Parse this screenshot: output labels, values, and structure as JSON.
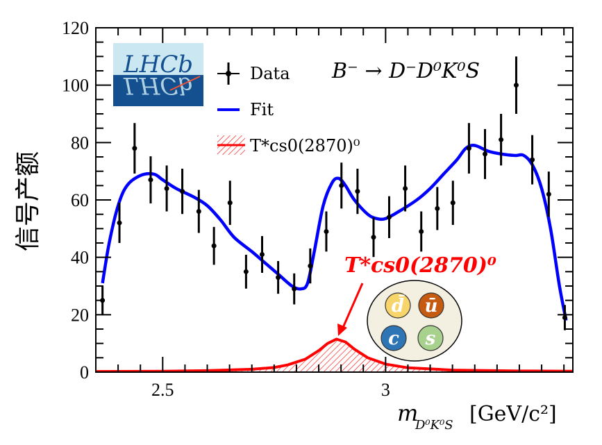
{
  "chart_data": {
    "type": "scatter",
    "title": "",
    "decay_label": "B⁻ → D⁻D⁰K⁰S",
    "xlabel": "m_{D⁰K⁰S} [GeV/c²]",
    "xlabel_main": "m",
    "xlabel_sub": "D⁰K⁰S",
    "xlabel_units": "[GeV/c²]",
    "ylabel": "信号产额",
    "xlim": [
      2.35,
      3.42
    ],
    "ylim": [
      0,
      120
    ],
    "xticks": [
      2.5,
      3.0
    ],
    "xtick_labels": [
      "2.5",
      "3"
    ],
    "yticks": [
      0,
      20,
      40,
      60,
      80,
      100,
      120
    ],
    "ytick_labels": [
      "0",
      "20",
      "40",
      "60",
      "80",
      "100",
      "120"
    ],
    "grid": false,
    "legend_placement": "top-left",
    "legend": [
      {
        "label": "Data",
        "style": "points-with-errorbars",
        "color": "#000000"
      },
      {
        "label": "Fit",
        "style": "line",
        "color": "#0000ff"
      },
      {
        "label": "T*cs0(2870)⁰",
        "style": "hatched-line",
        "color": "#ff0000"
      }
    ],
    "logo_text": "LHCb",
    "annotation": {
      "text": "T*cs0(2870)⁰",
      "color": "#ff0000"
    },
    "quark_content": [
      {
        "label": "d̄",
        "color": "#f7d56a"
      },
      {
        "label": "ū",
        "color": "#c55a11"
      },
      {
        "label": "c",
        "color": "#2e75b6"
      },
      {
        "label": "s",
        "color": "#a9d18e"
      }
    ],
    "data": {
      "x": [
        2.365,
        2.403,
        2.437,
        2.473,
        2.509,
        2.544,
        2.581,
        2.615,
        2.651,
        2.687,
        2.723,
        2.759,
        2.795,
        2.831,
        2.867,
        2.901,
        2.937,
        2.973,
        3.008,
        3.044,
        3.08,
        3.116,
        3.151,
        3.187,
        3.223,
        3.259,
        3.293,
        3.329,
        3.366,
        3.402
      ],
      "y": [
        25,
        52,
        78,
        67,
        64,
        63,
        56,
        44,
        59,
        35,
        41,
        33,
        29,
        37,
        49,
        65,
        63,
        47,
        54,
        64,
        49,
        57,
        59,
        78,
        76,
        81,
        100,
        74,
        62,
        19
      ],
      "yerr": [
        5,
        7,
        8.8,
        8.2,
        8,
        7.9,
        7.5,
        6.6,
        7.7,
        5.9,
        6.4,
        5.7,
        5.4,
        6.1,
        7,
        8,
        7.9,
        6.9,
        7.3,
        8,
        7,
        7.5,
        7.7,
        8.8,
        8.7,
        9,
        10,
        8.6,
        7.9,
        4.4
      ]
    },
    "fit": {
      "x": [
        2.365,
        2.38,
        2.4,
        2.42,
        2.45,
        2.48,
        2.5,
        2.53,
        2.57,
        2.6,
        2.63,
        2.66,
        2.7,
        2.73,
        2.76,
        2.79,
        2.81,
        2.825,
        2.84,
        2.86,
        2.88,
        2.895,
        2.91,
        2.93,
        2.96,
        2.98,
        3.0,
        3.03,
        3.07,
        3.1,
        3.13,
        3.16,
        3.18,
        3.2,
        3.23,
        3.26,
        3.29,
        3.31,
        3.33,
        3.35,
        3.37,
        3.39,
        3.405
      ],
      "y": [
        31,
        45,
        58,
        65,
        68.5,
        69,
        67,
        64,
        61,
        58,
        53,
        47,
        42,
        38,
        34,
        30,
        29,
        31,
        42,
        58,
        66,
        67.5,
        65,
        60,
        55,
        53.5,
        53.5,
        56,
        60,
        64,
        69,
        74,
        78,
        79,
        77,
        76,
        75.5,
        75.5,
        72,
        64,
        50,
        30,
        18
      ]
    },
    "signal": {
      "x": [
        2.35,
        2.5,
        2.6,
        2.7,
        2.75,
        2.78,
        2.82,
        2.85,
        2.87,
        2.89,
        2.91,
        2.93,
        2.96,
        3.0,
        3.05,
        3.15,
        3.3,
        3.42
      ],
      "y": [
        0.2,
        0.3,
        0.5,
        1,
        1.6,
        2.5,
        4.5,
        7.5,
        10,
        11.5,
        10.5,
        8,
        5,
        2.8,
        1.5,
        0.7,
        0.4,
        0.3
      ]
    }
  }
}
